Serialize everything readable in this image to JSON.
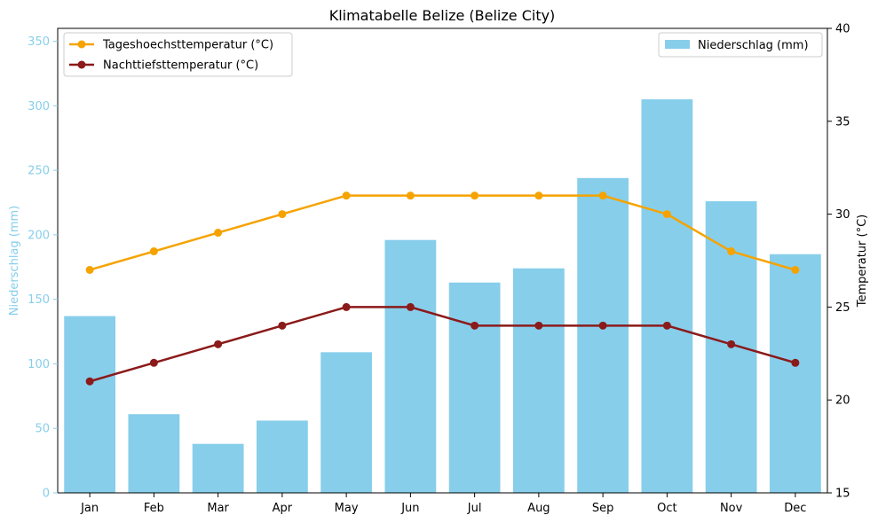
{
  "chart_data": {
    "type": "bar+line",
    "title": "Klimatabelle Belize (Belize City)",
    "categories": [
      "Jan",
      "Feb",
      "Mar",
      "Apr",
      "May",
      "Jun",
      "Jul",
      "Aug",
      "Sep",
      "Oct",
      "Nov",
      "Dec"
    ],
    "left_axis": {
      "label": "Niederschlag (mm)",
      "ylim": [
        0,
        360
      ],
      "ticks": [
        0,
        50,
        100,
        150,
        200,
        250,
        300,
        350
      ],
      "color": "#87ceeb"
    },
    "right_axis": {
      "label": "Temperatur (°C)",
      "ylim": [
        15,
        40
      ],
      "ticks": [
        15,
        20,
        25,
        30,
        35,
        40
      ],
      "color": "#000000"
    },
    "bar_series": {
      "name": "Niederschlag (mm)",
      "color": "#87ceeb",
      "values": [
        137,
        61,
        38,
        56,
        109,
        196,
        163,
        174,
        244,
        305,
        226,
        185
      ]
    },
    "line_series": [
      {
        "name": "Tageshoechsttemperatur (°C)",
        "color": "#f5a300",
        "values": [
          27,
          28,
          29,
          30,
          31,
          31,
          31,
          31,
          31,
          30,
          28,
          27
        ]
      },
      {
        "name": "Nachttiefsttemperatur (°C)",
        "color": "#8b1a1a",
        "values": [
          21,
          22,
          23,
          24,
          25,
          25,
          24,
          24,
          24,
          24,
          23,
          22
        ]
      }
    ],
    "legends": {
      "lines_position": "top-left",
      "bars_position": "top-right"
    },
    "grid": false
  }
}
